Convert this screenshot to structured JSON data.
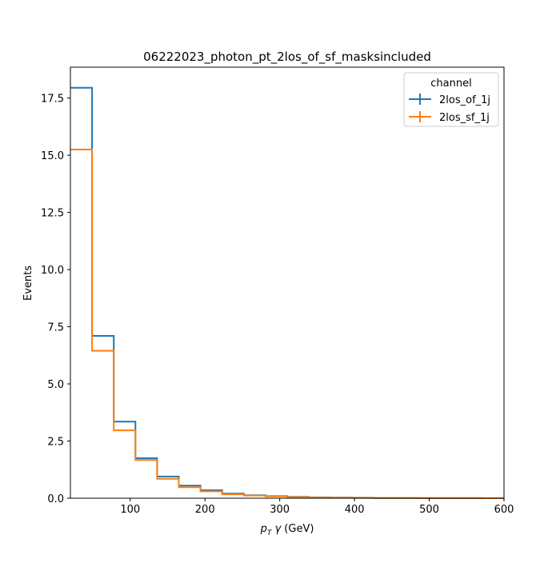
{
  "chart_data": {
    "type": "line",
    "title": "06222023_photon_pt_2los_of_sf_masksincluded",
    "xlabel_parts": {
      "p": "p",
      "sub": "T",
      "gamma": " γ",
      "unit": " (GeV)"
    },
    "ylabel": "Events",
    "xlim": [
      20,
      600
    ],
    "ylim": [
      0,
      18.85
    ],
    "x_ticks": [
      100,
      200,
      300,
      400,
      500,
      600
    ],
    "x_tick_labels": [
      "100",
      "200",
      "300",
      "400",
      "500",
      "600"
    ],
    "y_ticks": [
      0.0,
      2.5,
      5.0,
      7.5,
      10.0,
      12.5,
      15.0,
      17.5
    ],
    "y_tick_labels": [
      "0.0",
      "2.5",
      "5.0",
      "7.5",
      "10.0",
      "12.5",
      "15.0",
      "17.5"
    ],
    "bin_edges": [
      20,
      49,
      78,
      107,
      136,
      165,
      194,
      223,
      252,
      281,
      310,
      339,
      368,
      397,
      426,
      455,
      484,
      513,
      542,
      571,
      600
    ],
    "legend": {
      "title": "channel",
      "position": "top-right"
    },
    "series": [
      {
        "name": "2los_of_1j",
        "color": "#1f77b4",
        "values": [
          17.95,
          7.1,
          3.35,
          1.75,
          0.95,
          0.55,
          0.35,
          0.2,
          0.13,
          0.09,
          0.06,
          0.04,
          0.03,
          0.02,
          0.01,
          0.01,
          0.005,
          0.005,
          0.003,
          0.002
        ]
      },
      {
        "name": "2los_sf_1j",
        "color": "#ff7f0e",
        "values": [
          15.25,
          6.45,
          2.97,
          1.67,
          0.85,
          0.48,
          0.3,
          0.17,
          0.12,
          0.08,
          0.05,
          0.03,
          0.02,
          0.015,
          0.01,
          0.008,
          0.005,
          0.004,
          0.003,
          0.002
        ]
      }
    ]
  }
}
